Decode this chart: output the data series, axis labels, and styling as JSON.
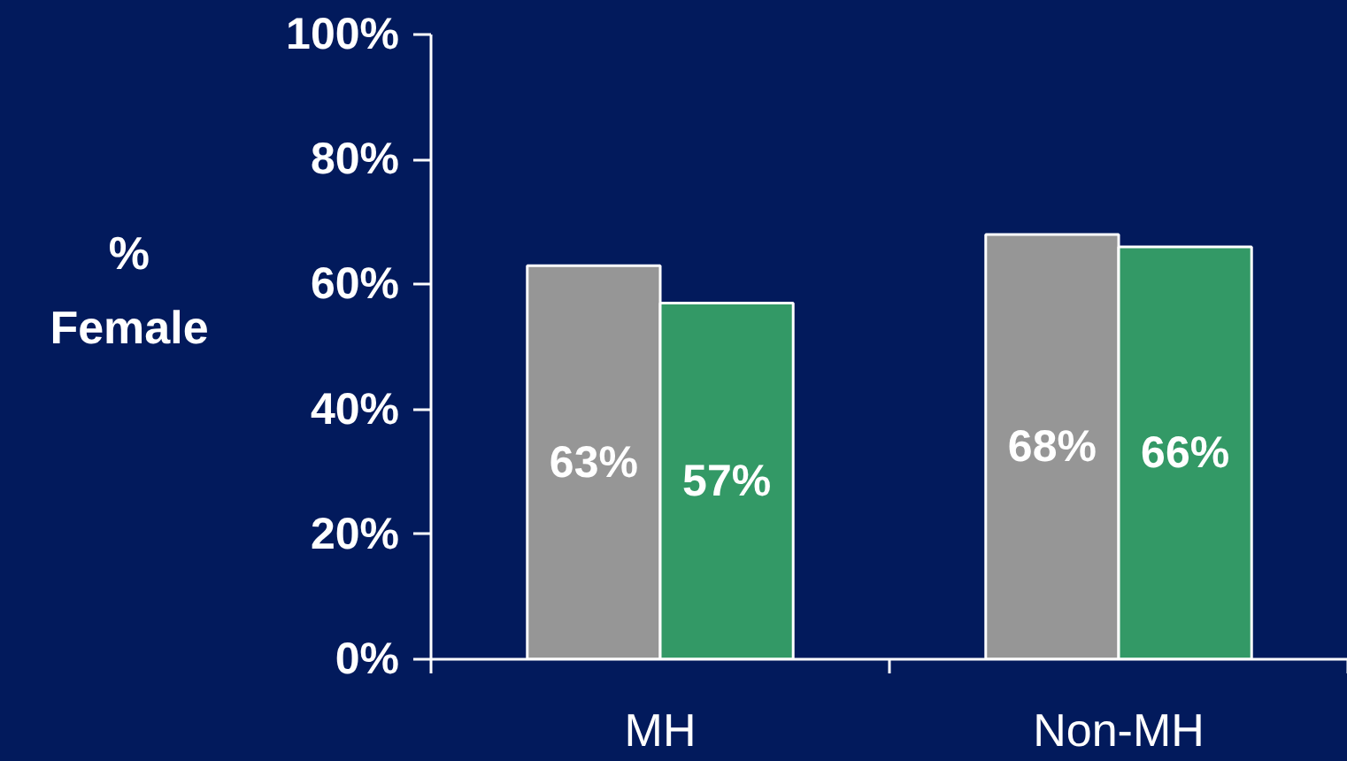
{
  "chart_data": {
    "type": "bar",
    "ylabel": "%\nFemale",
    "categories": [
      "MH",
      "Non-MH"
    ],
    "series": [
      {
        "color": "#969696",
        "values": [
          63,
          68
        ],
        "value_labels": [
          "63%",
          "68%"
        ]
      },
      {
        "color": "#339966",
        "values": [
          57,
          66
        ],
        "value_labels": [
          "57%",
          "66%"
        ]
      }
    ],
    "ylim": [
      0,
      100
    ],
    "yticks": [
      {
        "value": 0,
        "label": "0%"
      },
      {
        "value": 20,
        "label": "20%"
      },
      {
        "value": 40,
        "label": "40%"
      },
      {
        "value": 60,
        "label": "60%"
      },
      {
        "value": 80,
        "label": "80%"
      },
      {
        "value": 100,
        "label": "100%"
      }
    ]
  }
}
